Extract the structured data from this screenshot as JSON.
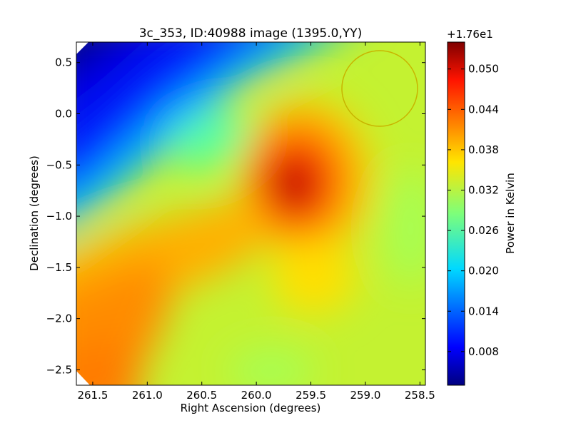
{
  "chart_data": [
    {
      "type": "heatmap",
      "title": "3c_353, ID:40988 image (1395.0,YY)",
      "xlabel": "Right Ascension (degrees)",
      "ylabel": "Declination (degrees)",
      "xlim": [
        261.65,
        258.45
      ],
      "ylim": [
        -2.65,
        0.7
      ],
      "x_ticks": [
        261.5,
        261.0,
        260.5,
        260.0,
        259.5,
        259.0,
        258.5
      ],
      "x_tick_labels": [
        "261.5",
        "261.0",
        "260.5",
        "260.0",
        "259.5",
        "259.0",
        "258.5"
      ],
      "y_ticks": [
        0.5,
        0.0,
        -0.5,
        -1.0,
        -1.5,
        -2.0,
        -2.5
      ],
      "y_tick_labels": [
        "0.5",
        "0.0",
        "−0.5",
        "−1.0",
        "−1.5",
        "−2.0",
        "−2.5"
      ],
      "colormap": "jet",
      "grid": false,
      "field_description": "map of sky power over RA/Dec; peak near RA 259.75, Dec -0.7; low values in the upper-left corner; elevated band toward the lower-left",
      "peak": {
        "ra": 259.75,
        "dec": -0.7,
        "value": 0.053
      },
      "beam_ellipse": {
        "ra": 258.9,
        "dec": 0.23,
        "color": "#c8b400"
      }
    },
    {
      "type": "colorbar",
      "label": "Power in Kelvin",
      "offset_text": "+1.76e1",
      "range": [
        0.003,
        0.054
      ],
      "ticks": [
        0.008,
        0.014,
        0.02,
        0.026,
        0.032,
        0.038,
        0.044,
        0.05
      ],
      "tick_labels": [
        "0.008",
        "0.014",
        "0.020",
        "0.026",
        "0.032",
        "0.038",
        "0.044",
        "0.050"
      ],
      "colormap": "jet"
    }
  ]
}
